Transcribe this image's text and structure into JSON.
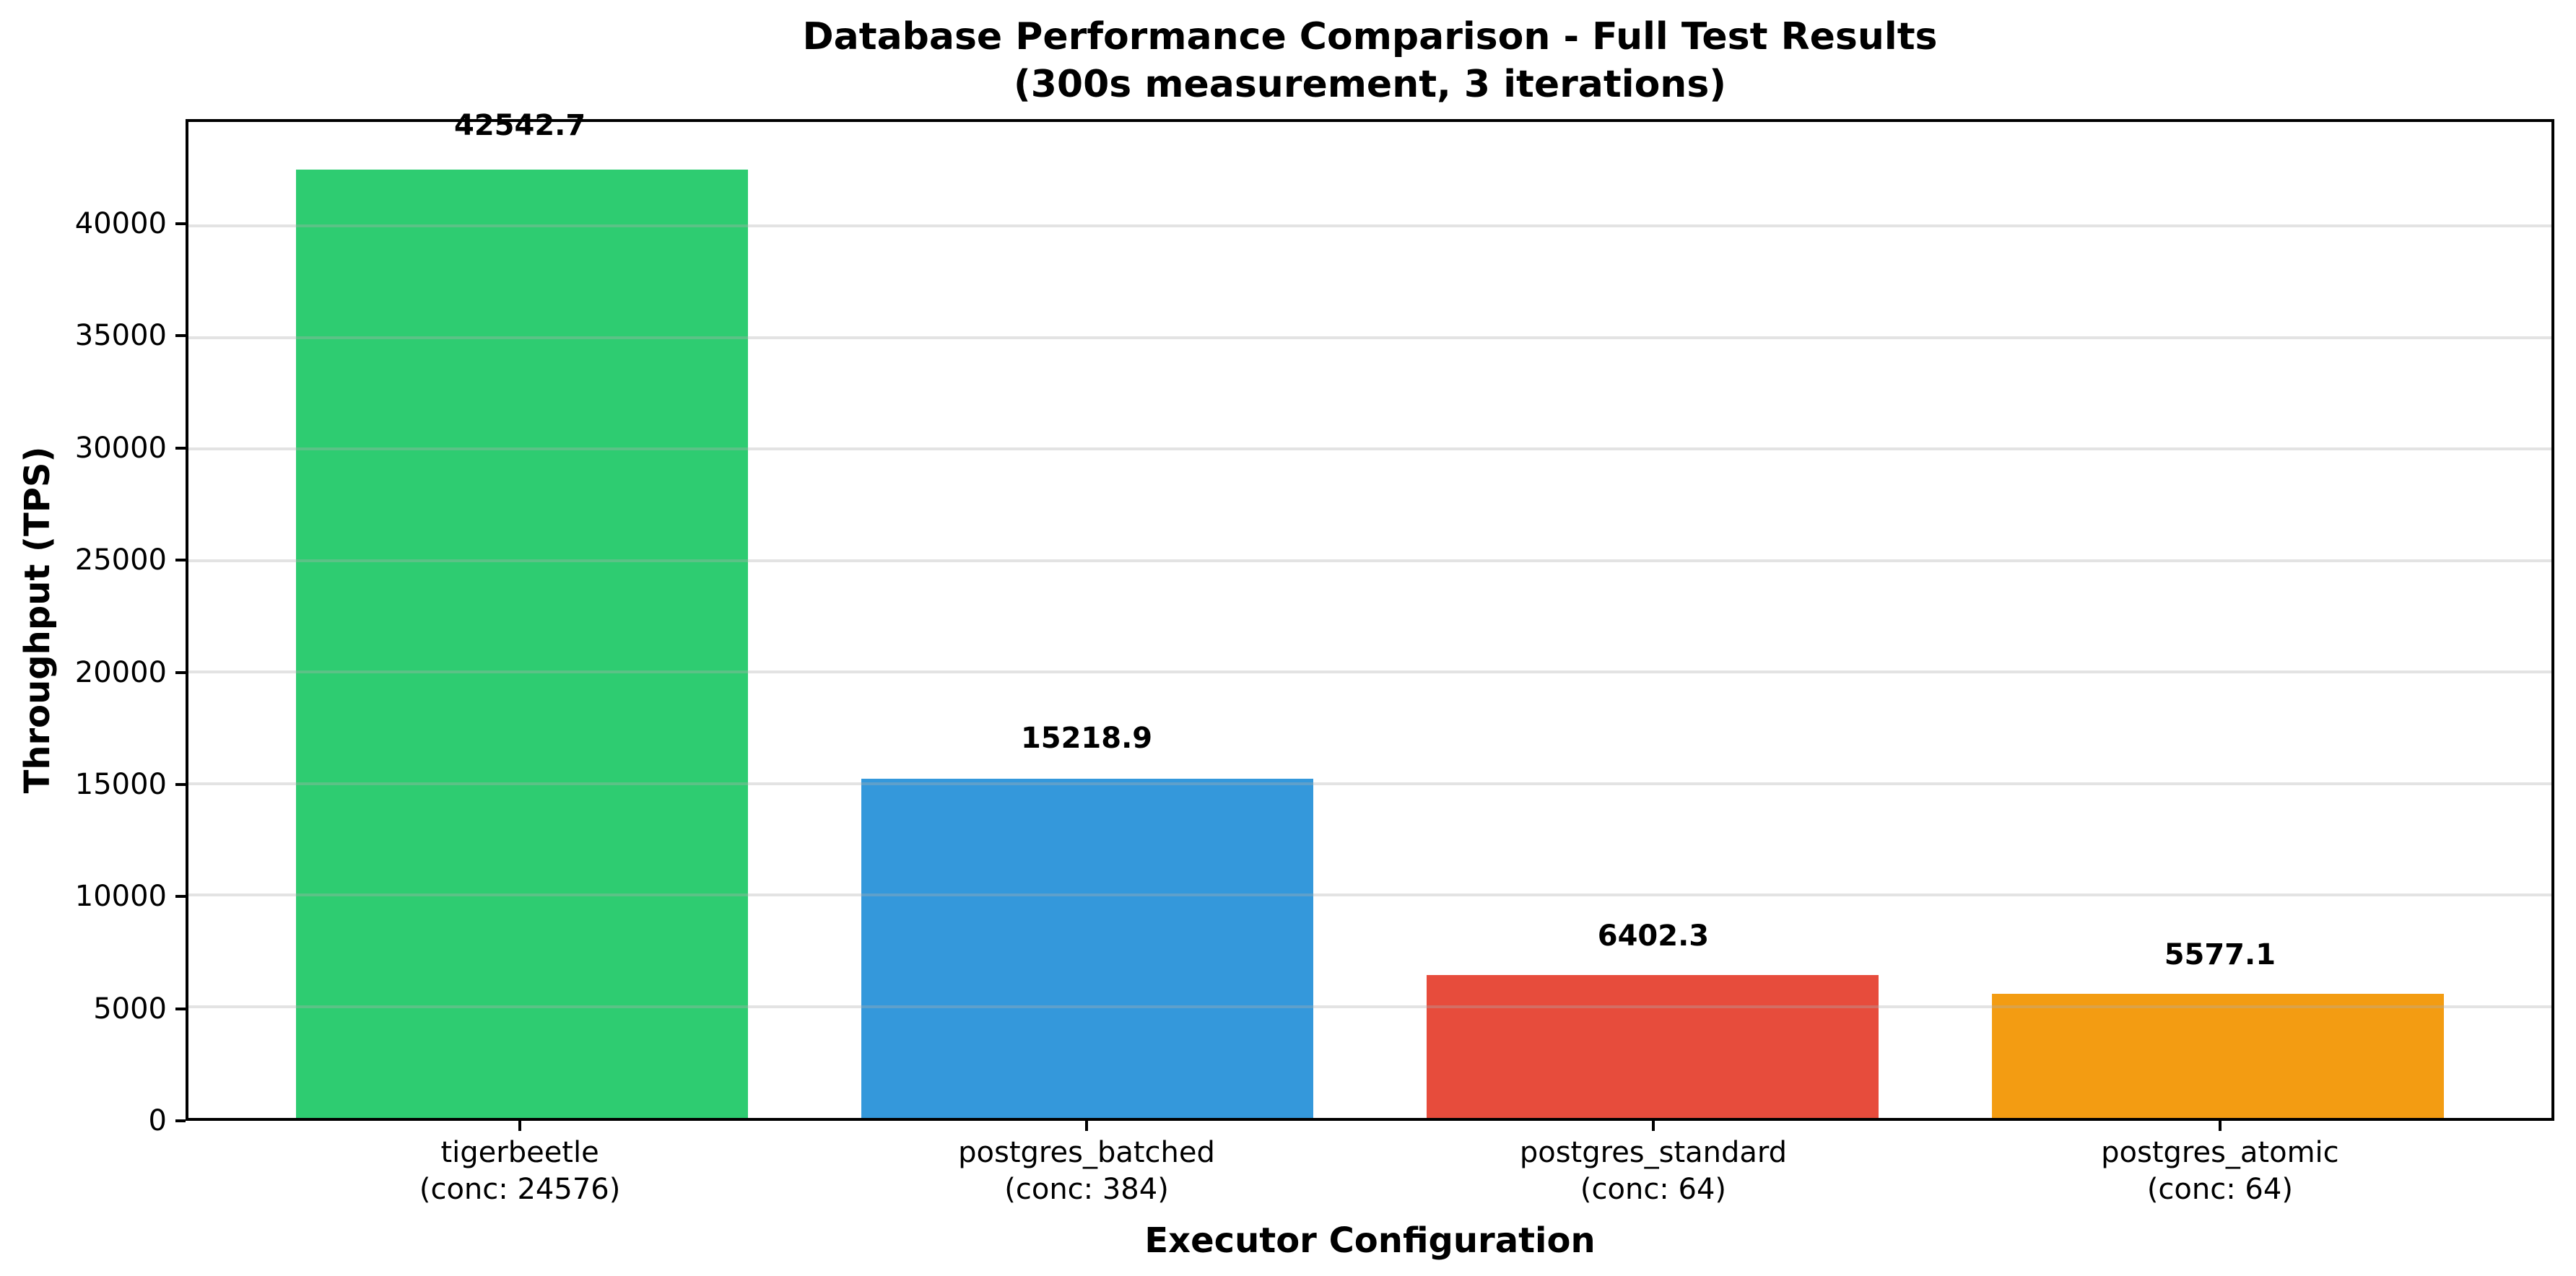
{
  "chart_data": {
    "type": "bar",
    "title": "Database Performance Comparison - Full Test Results",
    "subtitle": "(300s measurement, 3 iterations)",
    "xlabel": "Executor Configuration",
    "ylabel": "Throughput (TPS)",
    "categories": [
      "tigerbeetle",
      "postgres_batched",
      "postgres_standard",
      "postgres_atomic"
    ],
    "category_sublabels": [
      "(conc: 24576)",
      "(conc: 384)",
      "(conc: 64)",
      "(conc: 64)"
    ],
    "values": [
      42542.7,
      15218.9,
      6402.3,
      5577.1
    ],
    "value_labels": [
      "42542.7",
      "15218.9",
      "6402.3",
      "5577.1"
    ],
    "bar_colors": [
      "#2ecc71",
      "#3498db",
      "#e74c3c",
      "#f39c12"
    ],
    "ylim": [
      0,
      44669.8
    ],
    "yticks": [
      0,
      5000,
      10000,
      15000,
      20000,
      25000,
      30000,
      35000,
      40000
    ],
    "ytick_labels": [
      "0",
      "5000",
      "10000",
      "15000",
      "20000",
      "25000",
      "30000",
      "35000",
      "40000"
    ],
    "grid": "horizontal",
    "grid_color": "#b0b0b0",
    "grid_alpha": 0.35,
    "spine_color": "#000000",
    "background": "#ffffff",
    "legend": "none"
  }
}
